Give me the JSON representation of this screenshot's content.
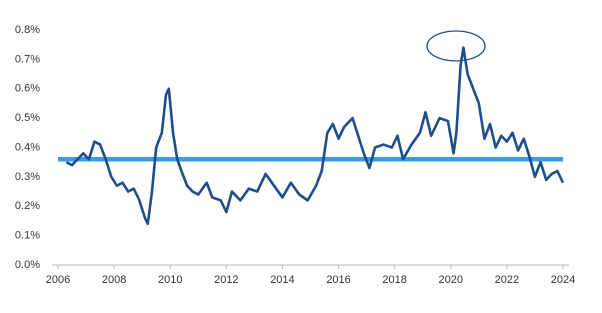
{
  "chart_data": {
    "type": "line",
    "x": [
      2006.3,
      2006.5,
      2006.7,
      2006.9,
      2007.1,
      2007.3,
      2007.5,
      2007.7,
      2007.9,
      2008.1,
      2008.3,
      2008.5,
      2008.7,
      2008.9,
      2009.1,
      2009.2,
      2009.35,
      2009.5,
      2009.7,
      2009.85,
      2009.95,
      2010.1,
      2010.25,
      2010.4,
      2010.6,
      2010.8,
      2011.0,
      2011.3,
      2011.5,
      2011.8,
      2012.0,
      2012.2,
      2012.5,
      2012.8,
      2013.1,
      2013.4,
      2013.7,
      2014.0,
      2014.3,
      2014.6,
      2014.9,
      2015.2,
      2015.4,
      2015.6,
      2015.8,
      2016.0,
      2016.2,
      2016.5,
      2016.7,
      2016.9,
      2017.1,
      2017.3,
      2017.6,
      2017.9,
      2018.1,
      2018.3,
      2018.6,
      2018.9,
      2019.1,
      2019.3,
      2019.6,
      2019.9,
      2020.1,
      2020.2,
      2020.35,
      2020.45,
      2020.6,
      2020.8,
      2021.0,
      2021.2,
      2021.4,
      2021.6,
      2021.8,
      2022.0,
      2022.2,
      2022.4,
      2022.6,
      2022.8,
      2023.0,
      2023.2,
      2023.4,
      2023.6,
      2023.8,
      2024.0
    ],
    "series": [
      {
        "color": "#1f4e8c",
        "values": [
          0.35,
          0.34,
          0.36,
          0.38,
          0.36,
          0.42,
          0.41,
          0.36,
          0.3,
          0.27,
          0.28,
          0.25,
          0.26,
          0.22,
          0.16,
          0.14,
          0.25,
          0.4,
          0.45,
          0.58,
          0.6,
          0.45,
          0.36,
          0.32,
          0.27,
          0.25,
          0.24,
          0.28,
          0.23,
          0.22,
          0.18,
          0.25,
          0.22,
          0.26,
          0.25,
          0.31,
          0.27,
          0.23,
          0.28,
          0.24,
          0.22,
          0.27,
          0.32,
          0.45,
          0.48,
          0.43,
          0.47,
          0.5,
          0.44,
          0.38,
          0.33,
          0.4,
          0.41,
          0.4,
          0.44,
          0.36,
          0.41,
          0.45,
          0.52,
          0.44,
          0.5,
          0.49,
          0.38,
          0.45,
          0.68,
          0.74,
          0.65,
          0.6,
          0.55,
          0.43,
          0.48,
          0.4,
          0.44,
          0.42,
          0.45,
          0.39,
          0.43,
          0.37,
          0.3,
          0.35,
          0.29,
          0.31,
          0.32,
          0.28
        ]
      }
    ],
    "reference_line": {
      "value": 0.36,
      "color": "#3a9be8"
    },
    "xlim": [
      2006,
      2024
    ],
    "xticks": [
      2006,
      2008,
      2010,
      2012,
      2014,
      2016,
      2018,
      2020,
      2022,
      2024
    ],
    "ylim": [
      0,
      0.8
    ],
    "yticks": [
      {
        "value": 0,
        "label": "0.0%"
      },
      {
        "value": 0.1,
        "label": "0.1%"
      },
      {
        "value": 0.2,
        "label": "0.2%"
      },
      {
        "value": 0.3,
        "label": "0.3%"
      },
      {
        "value": 0.4,
        "label": "0.4%"
      },
      {
        "value": 0.5,
        "label": "0.5%"
      },
      {
        "value": 0.6,
        "label": "0.6%"
      },
      {
        "value": 0.7,
        "label": "0.7%"
      },
      {
        "value": 0.8,
        "label": "0.8%"
      }
    ],
    "grid": false
  }
}
